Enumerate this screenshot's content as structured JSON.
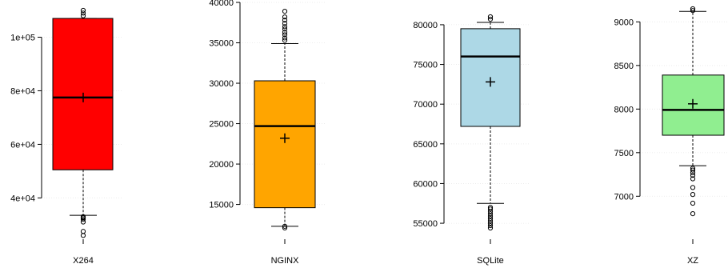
{
  "chart_data": [
    {
      "type": "box",
      "category": "X264",
      "color": "#ff0000",
      "ylim": [
        24000,
        110000
      ],
      "yticks": [
        40000,
        60000,
        80000,
        100000
      ],
      "ytick_labels": [
        "4e+04",
        "6e+04",
        "8e+04",
        "1e+05"
      ],
      "whisker_low": 33500,
      "q1": 50500,
      "median": 77500,
      "mean": 77500,
      "q3": 107000,
      "whisker_high": 107000,
      "outliers": [
        31000,
        32000,
        32500,
        32800,
        33000,
        26000,
        27500,
        108000,
        109000,
        110000
      ]
    },
    {
      "type": "box",
      "category": "NGINX",
      "color": "#ffa500",
      "ylim": [
        11000,
        40000
      ],
      "yticks": [
        15000,
        20000,
        25000,
        30000,
        35000,
        40000
      ],
      "ytick_labels": [
        "15000",
        "20000",
        "25000",
        "30000",
        "35000",
        "40000"
      ],
      "whisker_low": 12300,
      "q1": 14600,
      "median": 24700,
      "mean": 23200,
      "q3": 30300,
      "whisker_high": 34900,
      "outliers": [
        12100,
        12300,
        35300,
        35600,
        36000,
        36300,
        36700,
        37000,
        37400,
        37800,
        38200,
        38900
      ]
    },
    {
      "type": "box",
      "category": "SQLite",
      "color": "#add8e6",
      "ylim": [
        54000,
        81000
      ],
      "yticks": [
        55000,
        60000,
        65000,
        70000,
        75000,
        80000
      ],
      "ytick_labels": [
        "55000",
        "60000",
        "65000",
        "70000",
        "75000",
        "80000"
      ],
      "whisker_low": 57500,
      "q1": 67200,
      "median": 76000,
      "mean": 72800,
      "q3": 79500,
      "whisker_high": 80300,
      "outliers": [
        54400,
        54700,
        55000,
        55300,
        55600,
        55900,
        56200,
        56500,
        56800,
        57000,
        80700,
        81000
      ]
    },
    {
      "type": "box",
      "category": "XZ",
      "color": "#90ee90",
      "ylim": [
        6700,
        9150
      ],
      "yticks": [
        7000,
        7500,
        8000,
        8500,
        9000
      ],
      "ytick_labels": [
        "7000",
        "7500",
        "8000",
        "8500",
        "9000"
      ],
      "whisker_low": 7350,
      "q1": 7700,
      "median": 7990,
      "mean": 8060,
      "q3": 8390,
      "whisker_high": 9120,
      "outliers": [
        6800,
        6920,
        7020,
        7100,
        7200,
        7240,
        7270,
        7300,
        7320,
        9130,
        9150
      ]
    }
  ]
}
